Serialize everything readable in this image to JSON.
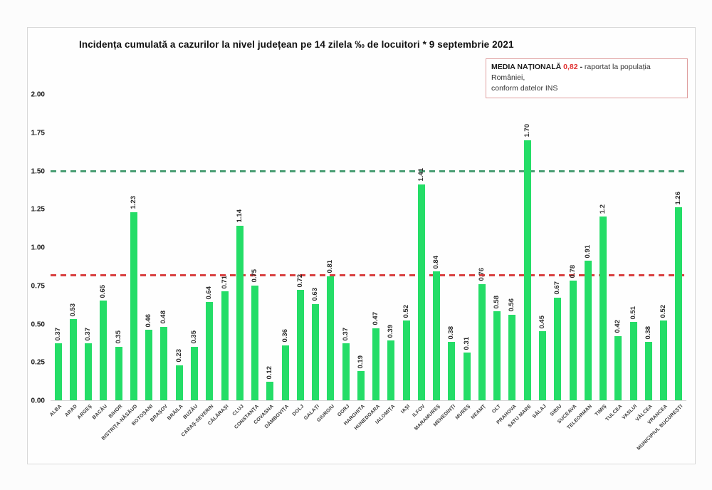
{
  "chart": {
    "title": "Incidența cumulată a cazurilor la nivel județean pe 14 zilela ‰ de locuitori * 9 septembrie 2021",
    "note_box": {
      "label": "MEDIA NAȚIONALĂ",
      "value": "0,82",
      "sep": "-",
      "text1": "raportat la populația României,",
      "text2": "conform datelor INS",
      "value_color": "#e03131",
      "border_color": "#dfa0a0"
    }
  },
  "chart_data": {
    "type": "bar",
    "title": "Incidența cumulată a cazurilor la nivel județean pe 14 zilela ‰ de locuitori * 9 septembrie 2021",
    "xlabel": "",
    "ylabel": "",
    "ylim": [
      0,
      2.0
    ],
    "yticks": [
      "0.00",
      "0.25",
      "0.50",
      "0.75",
      "1.00",
      "1.25",
      "1.50",
      "1.75",
      "2.00"
    ],
    "grid": false,
    "legend": "none",
    "bar_color": "#24dd67",
    "categories": [
      "ALBA",
      "ARAD",
      "ARGEȘ",
      "BACĂU",
      "BIHOR",
      "BISTRIȚA-NĂSĂUD",
      "BOTOȘANI",
      "BRAȘOV",
      "BRĂILA",
      "BUZĂU",
      "CARAȘ-SEVERIN",
      "CĂLĂRAȘI",
      "CLUJ",
      "CONSTANȚA",
      "COVASNA",
      "DÂMBOVIȚA",
      "DOLJ",
      "GALAȚI",
      "GIURGIU",
      "GORJ",
      "HARGHITA",
      "HUNEDOARA",
      "IALOMIȚA",
      "IAȘI",
      "ILFOV",
      "MARAMUREȘ",
      "MEHEDINȚI",
      "MUREȘ",
      "NEAMȚ",
      "OLT",
      "PRAHOVA",
      "SATU MARE",
      "SĂLAJ",
      "SIBIU",
      "SUCEAVA",
      "TELEORMAN",
      "TIMIȘ",
      "TULCEA",
      "VASLUI",
      "VÂLCEA",
      "VRANCEA",
      "MUNICIPIUL BUCUREȘTI"
    ],
    "values": [
      0.37,
      0.53,
      0.37,
      0.65,
      0.35,
      1.23,
      0.46,
      0.48,
      0.23,
      0.35,
      0.64,
      0.71,
      1.14,
      0.75,
      0.12,
      0.36,
      0.72,
      0.63,
      0.81,
      0.37,
      0.19,
      0.47,
      0.39,
      0.52,
      1.41,
      0.84,
      0.38,
      0.31,
      0.76,
      0.58,
      0.56,
      1.7,
      0.45,
      0.67,
      0.78,
      0.91,
      1.2,
      0.42,
      0.51,
      0.38,
      0.52,
      1.26
    ],
    "value_labels": [
      "0.37",
      "0.53",
      "0.37",
      "0.65",
      "0.35",
      "1.23",
      "0.46",
      "0.48",
      "0.23",
      "0.35",
      "0.64",
      "0.71",
      "1.14",
      "0.75",
      "0.12",
      "0.36",
      "0.72",
      "0.63",
      "0.81",
      "0.37",
      "0.19",
      "0.47",
      "0.39",
      "0.52",
      "1.41",
      "0.84",
      "0.38",
      "0.31",
      "0.76",
      "0.58",
      "0.56",
      "1.70",
      "0.45",
      "0.67",
      "0.78",
      "0.91",
      "1.2",
      "0.42",
      "0.51",
      "0.38",
      "0.52",
      "1.26"
    ],
    "reference_lines": [
      {
        "name": "threshold-line",
        "value": 1.5,
        "color": "#4a9e74",
        "style": "dashed"
      },
      {
        "name": "national-average-line",
        "value": 0.82,
        "color": "#d84040",
        "style": "dashed"
      }
    ]
  }
}
